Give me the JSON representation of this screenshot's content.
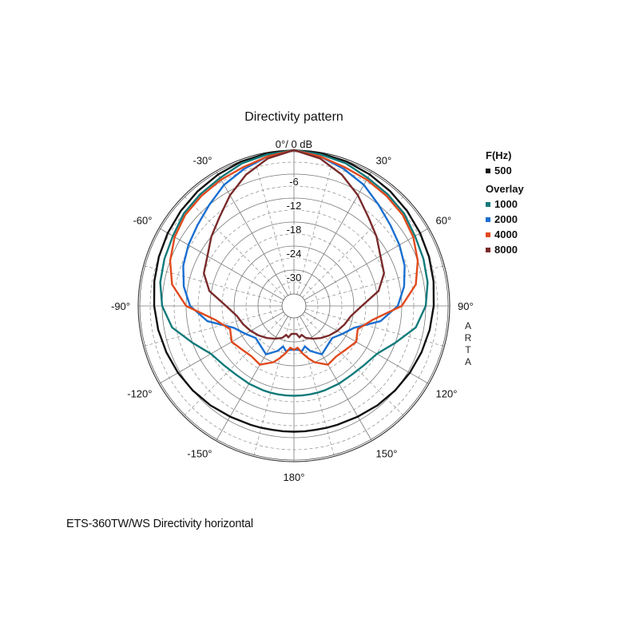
{
  "caption": "ETS-360TW/WS  Directivity horizontal",
  "brand": [
    "A",
    "R",
    "T",
    "A"
  ],
  "legend": {
    "title": "F(Hz)",
    "overlay_title": "Overlay"
  },
  "colors": {
    "500": "#111111",
    "1000": "#127a7a",
    "2000": "#1a6fd0",
    "4000": "#e0491c",
    "8000": "#7a2a2a",
    "grid": "#7a7a7a"
  },
  "chart_data": {
    "type": "polar",
    "title": "Directivity pattern",
    "r_unit": "dB",
    "r_range": [
      -36,
      0
    ],
    "radial_labels": [
      "0°/ 0 dB",
      "-6",
      "-12",
      "-18",
      "-24",
      "-30"
    ],
    "angle_labels": [
      {
        "deg": -30,
        "text": "-30°"
      },
      {
        "deg": 30,
        "text": "30°"
      },
      {
        "deg": -60,
        "text": "-60°"
      },
      {
        "deg": 60,
        "text": "60°"
      },
      {
        "deg": -90,
        "text": "-90°"
      },
      {
        "deg": 90,
        "text": "90°"
      },
      {
        "deg": -120,
        "text": "-120°"
      },
      {
        "deg": 120,
        "text": "120°"
      },
      {
        "deg": -150,
        "text": "-150°"
      },
      {
        "deg": 150,
        "text": "150°"
      },
      {
        "deg": 180,
        "text": "180°"
      }
    ],
    "angles": [
      0,
      10,
      20,
      30,
      40,
      50,
      60,
      70,
      80,
      90,
      100,
      110,
      120,
      130,
      140,
      150,
      160,
      165,
      170,
      175,
      180
    ],
    "series": [
      {
        "name": "500",
        "group": "F(Hz)",
        "values": [
          0,
          -0.2,
          -0.5,
          -1,
          -1.5,
          -2,
          -2.5,
          -3,
          -3.5,
          -4,
          -4.5,
          -5,
          -5.5,
          -6,
          -6.5,
          -7,
          -7.3,
          -7.4,
          -7.5,
          -7.5,
          -7.5
        ]
      },
      {
        "name": "1000",
        "group": "Overlay",
        "values": [
          0,
          -0.5,
          -1,
          -2,
          -2.5,
          -3,
          -4,
          -4.5,
          -5,
          -6,
          -8,
          -12,
          -15,
          -16,
          -16.5,
          -16.5,
          -16.5,
          -16.5,
          -16.5,
          -16.5,
          -16.5
        ]
      },
      {
        "name": "2000",
        "group": "Overlay",
        "values": [
          0,
          -1,
          -2.5,
          -4,
          -6,
          -7.5,
          -8.5,
          -9.5,
          -11,
          -13,
          -17,
          -23,
          -25,
          -26.5,
          -26,
          -25,
          -27,
          -28.5,
          -27.5,
          -28,
          -28
        ]
      },
      {
        "name": "4000",
        "group": "Overlay",
        "values": [
          0,
          -1,
          -2,
          -2.5,
          -3,
          -3.5,
          -4.5,
          -6,
          -8,
          -12,
          -19,
          -22,
          -21,
          -22,
          -22.5,
          -22,
          -24,
          -25.5,
          -27,
          -28.5,
          -28
        ]
      },
      {
        "name": "8000",
        "group": "Overlay",
        "values": [
          0,
          -1.5,
          -4,
          -7,
          -10,
          -12,
          -14,
          -15,
          -17.5,
          -22,
          -24.5,
          -25.5,
          -26.5,
          -27.5,
          -28.5,
          -29.5,
          -30.5,
          -31.5,
          -31,
          -32,
          -32
        ]
      }
    ]
  }
}
